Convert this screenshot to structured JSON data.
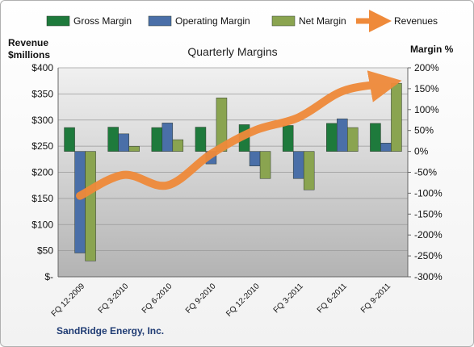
{
  "chart_data": {
    "type": "bar",
    "title": "Quarterly Margins",
    "left_axis_label_line1": "Revenue",
    "left_axis_label_line2": "$millions",
    "right_axis_label": "Margin %",
    "categories": [
      "FQ 12-2009",
      "FQ 3-2010",
      "FQ 6-2010",
      "FQ 9-2010",
      "FQ 12-2010",
      "FQ 3-2011",
      "FQ 6-2011",
      "FQ 9-2011"
    ],
    "series": [
      {
        "name": "Gross Margin",
        "axis": "right",
        "color": "#1e7a3c",
        "values": [
          57,
          58,
          57,
          58,
          64,
          62,
          67,
          67
        ]
      },
      {
        "name": "Operating Margin",
        "axis": "right",
        "color": "#4a6fa8",
        "values": [
          -243,
          42,
          68,
          -30,
          -35,
          -65,
          78,
          20
        ]
      },
      {
        "name": "Net Margin",
        "axis": "right",
        "color": "#8aa450",
        "values": [
          -262,
          12,
          28,
          128,
          -65,
          -92,
          57,
          163
        ]
      },
      {
        "name": "Revenues",
        "axis": "left",
        "type": "line",
        "color": "#ef8a3a",
        "values": [
          155,
          195,
          175,
          235,
          280,
          305,
          355,
          370
        ]
      }
    ],
    "left_ylim": [
      0,
      400
    ],
    "right_ylim": [
      -300,
      200
    ],
    "left_ticks": [
      "$-",
      "$50",
      "$100",
      "$150",
      "$200",
      "$250",
      "$300",
      "$350",
      "$400"
    ],
    "right_ticks": [
      "-300%",
      "-250%",
      "-200%",
      "-150%",
      "-100%",
      "-50%",
      "0%",
      "50%",
      "100%",
      "150%",
      "200%"
    ],
    "legend_position": "top",
    "grid": true,
    "source_label": "SandRidge Energy, Inc."
  }
}
